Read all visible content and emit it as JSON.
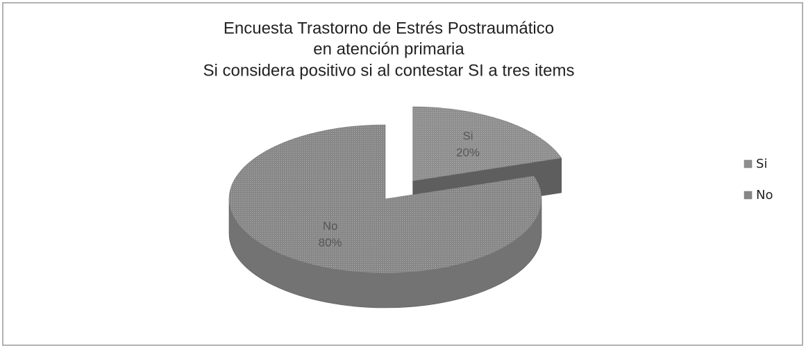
{
  "chart_data": {
    "type": "pie",
    "title": [
      "Encuesta Trastorno de Estrés Postraumático",
      "en atención primaria",
      "Si considera positivo si al contestar SI a tres items"
    ],
    "categories": [
      "Si",
      "No"
    ],
    "values": [
      20,
      80
    ],
    "value_labels": [
      "20%",
      "80%"
    ],
    "colors": [
      "#8e8e8e",
      "#878787"
    ],
    "legend": "right"
  }
}
